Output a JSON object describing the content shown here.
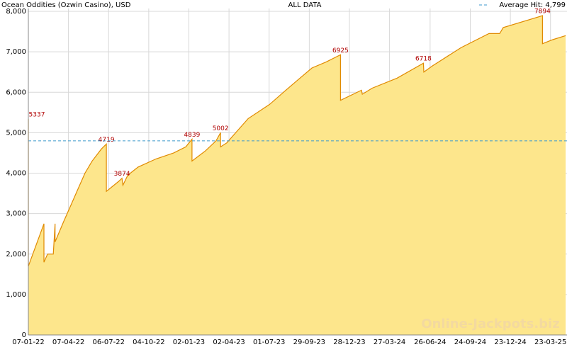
{
  "chart_data": {
    "type": "area",
    "title": "Ocean Oddities (Ozwin Casino), USD",
    "subtitle": "ALL DATA",
    "watermark": "Online-Jackpots.biz",
    "x": [
      "07-01-22",
      "07-01-22",
      "11-02-22",
      "11-02-22",
      "19-02-22",
      "04-03-22",
      "08-03-22",
      "08-03-22",
      "27-03-22",
      "12-04-22",
      "28-04-22",
      "14-05-22",
      "30-05-22",
      "20-06-22",
      "01-07-22",
      "01-07-22",
      "29-07-22",
      "05-08-22",
      "07-08-22",
      "18-08-22",
      "10-09-22",
      "20-10-22",
      "29-11-22",
      "26-12-22",
      "09-01-23",
      "09-01-23",
      "08-02-23",
      "04-03-23",
      "14-03-23",
      "14-03-23",
      "28-03-23",
      "21-04-23",
      "15-05-23",
      "02-07-23",
      "02-08-23",
      "03-09-23",
      "05-10-23",
      "06-11-23",
      "08-12-23",
      "08-12-23",
      "24-01-24",
      "26-01-24",
      "17-02-24",
      "13-04-24",
      "11-06-24",
      "12-06-24",
      "01-07-24",
      "03-09-24",
      "05-11-24",
      "29-11-24",
      "07-12-24",
      "05-03-25",
      "05-03-25",
      "28-03-25",
      "26-04-25"
    ],
    "values": [
      5337,
      1700,
      2750,
      1800,
      2000,
      2000,
      2750,
      2300,
      2800,
      3200,
      3600,
      4000,
      4300,
      4600,
      4719,
      3550,
      3800,
      3874,
      3700,
      3950,
      4150,
      4350,
      4500,
      4650,
      4839,
      4300,
      4550,
      4800,
      5002,
      4650,
      4750,
      5050,
      5350,
      5700,
      6000,
      6300,
      6600,
      6750,
      6925,
      5800,
      6050,
      5950,
      6100,
      6350,
      6718,
      6500,
      6650,
      7100,
      7450,
      7450,
      7600,
      7894,
      7200,
      7300,
      7400
    ],
    "value_labels": [
      "5337",
      null,
      null,
      null,
      null,
      null,
      null,
      null,
      null,
      null,
      null,
      null,
      null,
      null,
      "4719",
      null,
      null,
      "3874",
      null,
      null,
      null,
      null,
      null,
      null,
      "4839",
      null,
      null,
      null,
      "5002",
      null,
      null,
      null,
      null,
      null,
      null,
      null,
      null,
      null,
      "6925",
      null,
      null,
      null,
      null,
      null,
      "6718",
      null,
      null,
      null,
      null,
      null,
      null,
      "7894",
      null,
      null,
      null
    ],
    "color": "#e08a00",
    "fill": "#fde68c",
    "average": {
      "value": 4799,
      "label": "Average Hit: 4,799"
    },
    "average_color": "#3d9acc",
    "ylim": [
      0,
      8000
    ],
    "yticks": [
      0,
      {
        "value": 1000,
        "label": "1,000"
      },
      {
        "value": 2000,
        "label": "2,000"
      },
      {
        "value": 3000,
        "label": "3,000"
      },
      {
        "value": 4000,
        "label": "4,000"
      },
      {
        "value": 5000,
        "label": "5,000"
      },
      {
        "value": 6000,
        "label": "6,000"
      },
      {
        "value": 7000,
        "label": "7,000"
      },
      {
        "value": 8000,
        "label": "8,000"
      }
    ],
    "xlim": [
      "07-01-22",
      "29-04-25"
    ],
    "xticks": [
      "07-01-22",
      "07-04-22",
      "06-07-22",
      "04-10-22",
      "02-01-23",
      "02-04-23",
      "01-07-23",
      "29-09-23",
      "28-12-23",
      "27-03-24",
      "26-06-24",
      "24-09-24",
      "23-12-24",
      "23-03-25"
    ],
    "grid": true
  }
}
